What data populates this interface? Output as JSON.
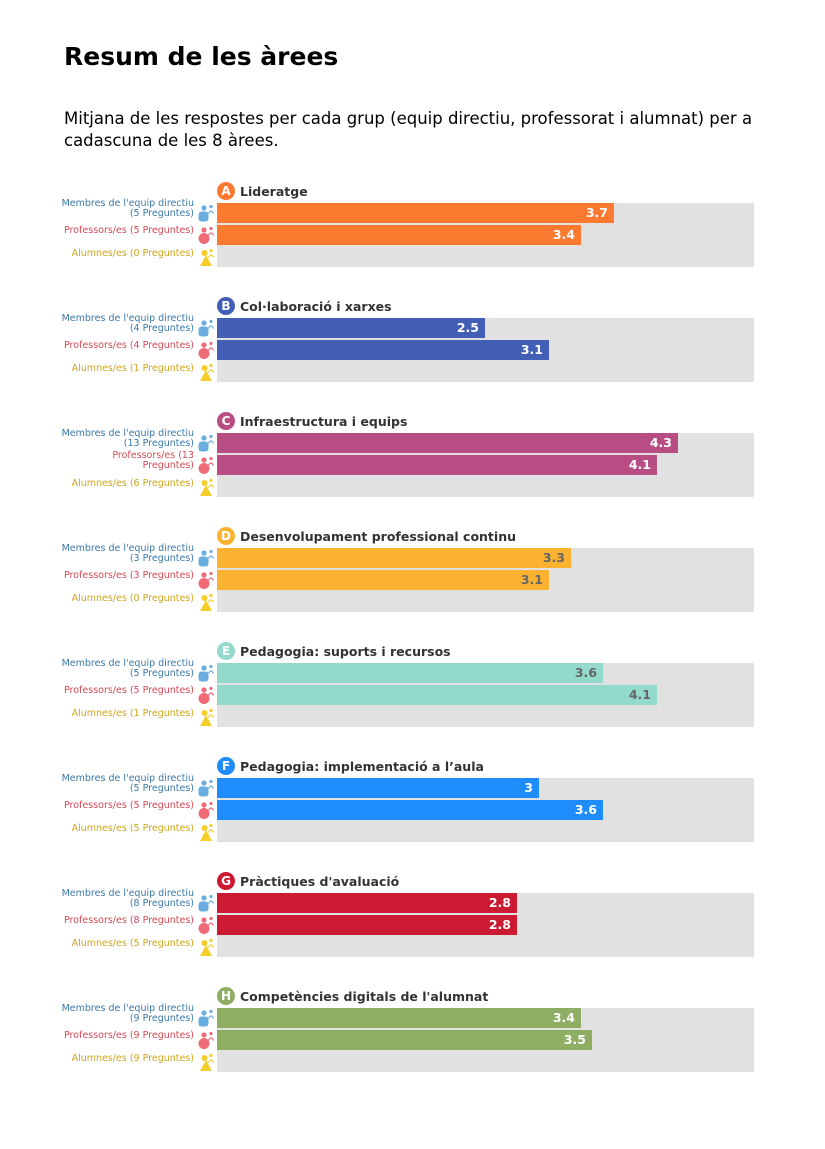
{
  "page": {
    "title": "Resum de les àrees",
    "subtitle": "Mitjana de les respostes per cada grup (equip directiu, professorat i alumnat) per a cadascuna de les 8 àrees."
  },
  "colors": {
    "track": "#e1e1e1",
    "label_directors": "#3b78a8",
    "label_teachers": "#d04a56",
    "label_students": "#cfa61d",
    "icon_directors": "#6aaee0",
    "icon_teachers": "#ee6b77",
    "icon_students": "#f5cd2a"
  },
  "chart_data": {
    "type": "bar",
    "orientation": "horizontal",
    "xlim": [
      0,
      5
    ],
    "series_groups": [
      "Membres de l'equip directiu",
      "Professors/es",
      "Alumnes/es"
    ],
    "areas": [
      {
        "letter": "A",
        "title": "Lideratge",
        "color": "#fc7930",
        "value_text_color": "#ffffff",
        "groups": [
          {
            "label": "Membres de l'equip directiu",
            "questions": "(5 Preguntes)",
            "value": 3.7
          },
          {
            "label": "Professors/es (5 Preguntes)",
            "questions": "",
            "value": 3.4
          },
          {
            "label": "Alumnes/es (0 Preguntes)",
            "questions": "",
            "value": null
          }
        ]
      },
      {
        "letter": "B",
        "title": "Col·laboració i xarxes",
        "color": "#435eb5",
        "value_text_color": "#ffffff",
        "groups": [
          {
            "label": "Membres de l'equip directiu",
            "questions": "(4 Preguntes)",
            "value": 2.5
          },
          {
            "label": "Professors/es (4 Preguntes)",
            "questions": "",
            "value": 3.1
          },
          {
            "label": "Alumnes/es (1 Preguntes)",
            "questions": "",
            "value": null
          }
        ]
      },
      {
        "letter": "C",
        "title": "Infraestructura i equips",
        "color": "#b84d84",
        "value_text_color": "#ffffff",
        "groups": [
          {
            "label": "Membres de l'equip directiu",
            "questions": "(13 Preguntes)",
            "value": 4.3
          },
          {
            "label": "Professors/es (13",
            "questions": "Preguntes)",
            "value": 4.1
          },
          {
            "label": "Alumnes/es (6 Preguntes)",
            "questions": "",
            "value": null
          }
        ]
      },
      {
        "letter": "D",
        "title": "Desenvolupament professional continu",
        "color": "#fbb230",
        "value_text_color": "#666666",
        "groups": [
          {
            "label": "Membres de l'equip directiu",
            "questions": "(3 Preguntes)",
            "value": 3.3
          },
          {
            "label": "Professors/es (3 Preguntes)",
            "questions": "",
            "value": 3.1
          },
          {
            "label": "Alumnes/es (0 Preguntes)",
            "questions": "",
            "value": null
          }
        ]
      },
      {
        "letter": "E",
        "title": "Pedagogia: suports i recursos",
        "color": "#93dacc",
        "value_text_color": "#666666",
        "groups": [
          {
            "label": "Membres de l'equip directiu",
            "questions": "(5 Preguntes)",
            "value": 3.6
          },
          {
            "label": "Professors/es (5 Preguntes)",
            "questions": "",
            "value": 4.1
          },
          {
            "label": "Alumnes/es (1 Preguntes)",
            "questions": "",
            "value": null
          }
        ]
      },
      {
        "letter": "F",
        "title": "Pedagogia: implementació a l’aula",
        "color": "#1f8cfb",
        "value_text_color": "#ffffff",
        "groups": [
          {
            "label": "Membres de l'equip directiu",
            "questions": "(5 Preguntes)",
            "value": 3
          },
          {
            "label": "Professors/es (5 Preguntes)",
            "questions": "",
            "value": 3.6
          },
          {
            "label": "Alumnes/es (5 Preguntes)",
            "questions": "",
            "value": null
          }
        ]
      },
      {
        "letter": "G",
        "title": "Pràctiques d'avaluació",
        "color": "#cc1a32",
        "value_text_color": "#ffffff",
        "groups": [
          {
            "label": "Membres de l'equip directiu",
            "questions": "(8 Preguntes)",
            "value": 2.8
          },
          {
            "label": "Professors/es (8 Preguntes)",
            "questions": "",
            "value": 2.8
          },
          {
            "label": "Alumnes/es (5 Preguntes)",
            "questions": "",
            "value": null
          }
        ]
      },
      {
        "letter": "H",
        "title": "Competències digitals de l'alumnat",
        "color": "#8eae63",
        "value_text_color": "#ffffff",
        "groups": [
          {
            "label": "Membres de l'equip directiu",
            "questions": "(9 Preguntes)",
            "value": 3.4
          },
          {
            "label": "Professors/es (9 Preguntes)",
            "questions": "",
            "value": 3.5
          },
          {
            "label": "Alumnes/es (9 Preguntes)",
            "questions": "",
            "value": null
          }
        ]
      }
    ]
  }
}
